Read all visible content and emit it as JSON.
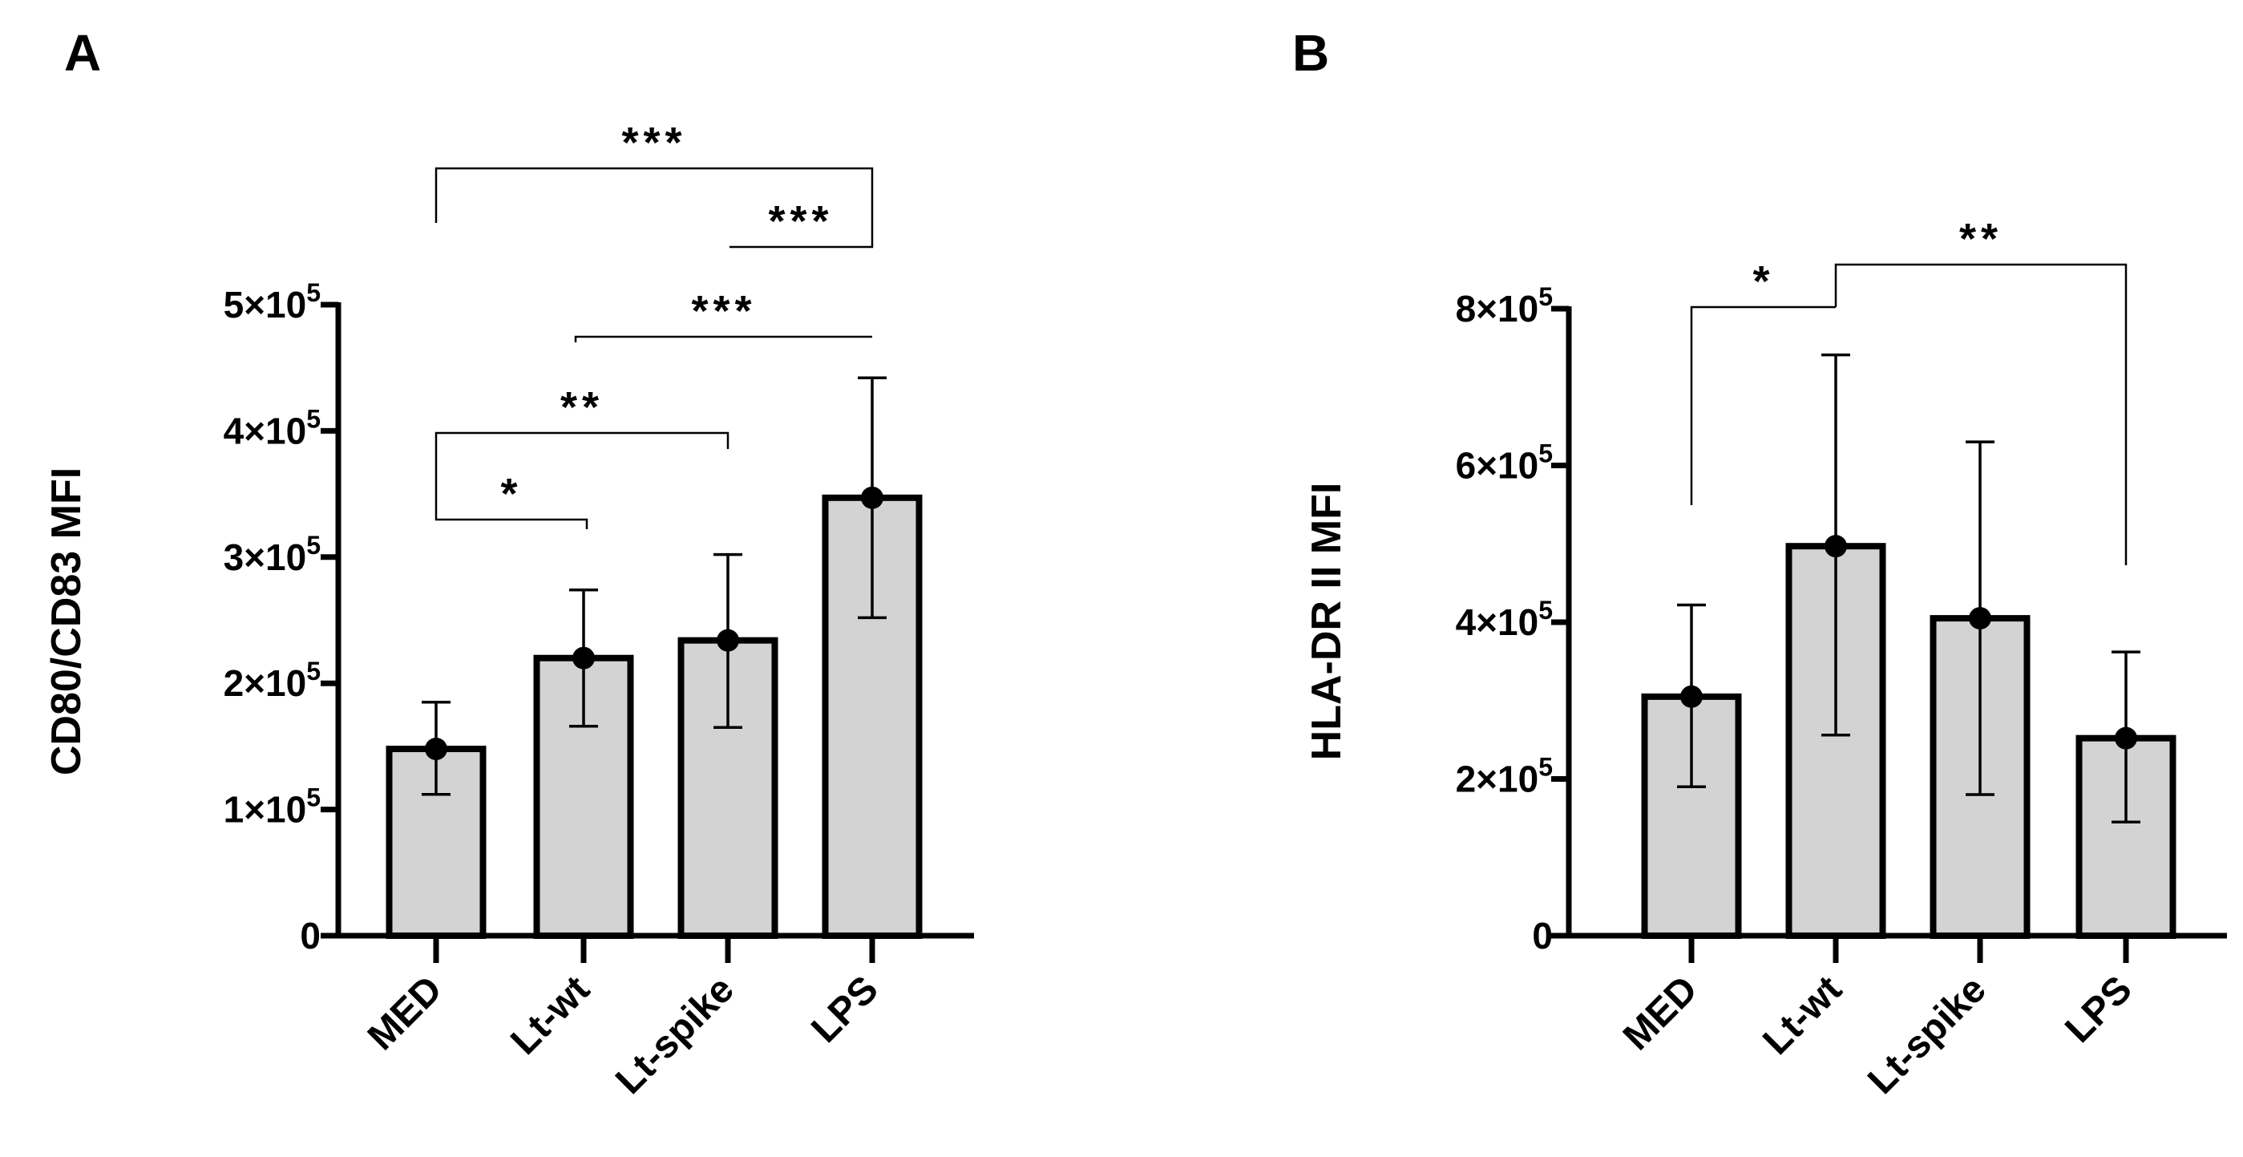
{
  "colors": {
    "bar_fill": "#d3d3d3",
    "stroke": "#000000",
    "background": "#ffffff"
  },
  "chart_data": [
    {
      "type": "bar",
      "panel": "A",
      "title": "",
      "xlabel": "",
      "ylabel": "CD80/CD83 MFI",
      "categories": [
        "MED",
        "Lt-wt",
        "Lt-spike",
        "LPS"
      ],
      "values": [
        148000,
        220000,
        234000,
        347000
      ],
      "error_low": [
        112000,
        166000,
        165000,
        252000
      ],
      "error_high": [
        185000,
        274000,
        302000,
        442000
      ],
      "ylim": [
        0,
        500000
      ],
      "yticks": [
        {
          "value": 0,
          "base": "0",
          "exp": ""
        },
        {
          "value": 100000,
          "base": "1×10",
          "exp": "5"
        },
        {
          "value": 200000,
          "base": "2×10",
          "exp": "5"
        },
        {
          "value": 300000,
          "base": "3×10",
          "exp": "5"
        },
        {
          "value": 400000,
          "base": "4×10",
          "exp": "5"
        },
        {
          "value": 500000,
          "base": "5×10",
          "exp": "5"
        }
      ],
      "significance": [
        {
          "from": "MED",
          "to": "LPS",
          "label": "***"
        },
        {
          "from": "Lt-spike",
          "to": "LPS",
          "label": "***"
        },
        {
          "from": "Lt-wt",
          "to": "LPS",
          "label": "***"
        },
        {
          "from": "MED",
          "to": "Lt-spike",
          "label": "**"
        },
        {
          "from": "MED",
          "to": "Lt-wt",
          "label": "*"
        }
      ]
    },
    {
      "type": "bar",
      "panel": "B",
      "title": "",
      "xlabel": "",
      "ylabel": "HLA-DR II MFI",
      "categories": [
        "MED",
        "Lt-wt",
        "Lt-spike",
        "LPS"
      ],
      "values": [
        305000,
        497000,
        405000,
        252000
      ],
      "error_low": [
        190000,
        256000,
        180000,
        145000
      ],
      "error_high": [
        422000,
        741000,
        630000,
        362000
      ],
      "ylim": [
        0,
        800000
      ],
      "yticks": [
        {
          "value": 0,
          "base": "0",
          "exp": ""
        },
        {
          "value": 200000,
          "base": "2×10",
          "exp": "5"
        },
        {
          "value": 400000,
          "base": "4×10",
          "exp": "5"
        },
        {
          "value": 600000,
          "base": "6×10",
          "exp": "5"
        },
        {
          "value": 800000,
          "base": "8×10",
          "exp": "5"
        }
      ],
      "significance": [
        {
          "from": "MED",
          "to": "Lt-wt",
          "label": "*"
        },
        {
          "from": "Lt-wt",
          "to": "LPS",
          "label": "**"
        }
      ]
    }
  ]
}
